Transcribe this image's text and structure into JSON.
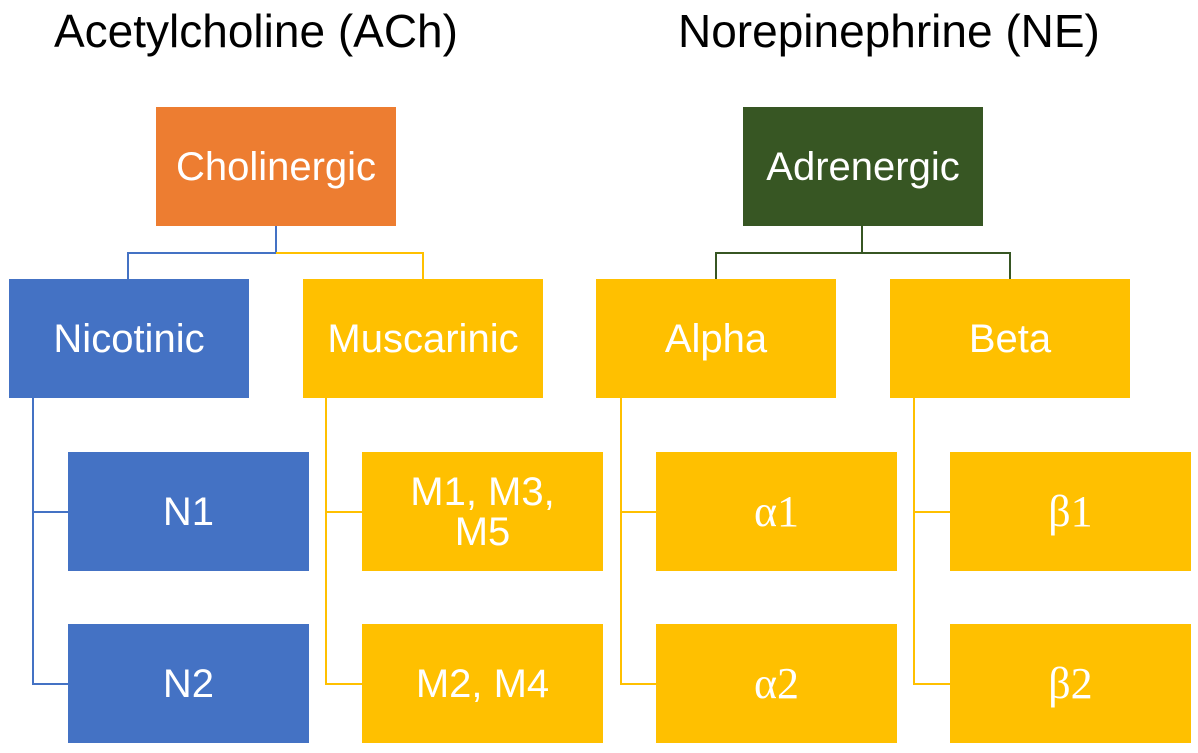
{
  "headings": {
    "left": "Acetylcholine (ACh)",
    "right": "Norepinephrine (NE)"
  },
  "trees": [
    {
      "root": "Cholinergic",
      "branches": [
        {
          "label": "Nicotinic",
          "children": [
            "N1",
            "N2"
          ]
        },
        {
          "label": "Muscarinic",
          "children": [
            "M1, M3, M5",
            "M2, M4"
          ]
        }
      ]
    },
    {
      "root": "Adrenergic",
      "branches": [
        {
          "label": "Alpha",
          "children": [
            "α1",
            "α2"
          ]
        },
        {
          "label": "Beta",
          "children": [
            "β1",
            "β2"
          ]
        }
      ]
    }
  ],
  "colors": {
    "cholinergic": "#ED7D31",
    "nicotinic": "#4472C4",
    "muscarinic": "#FFC000",
    "adrenergic": "#375623",
    "adrenergic_subtypes": "#FFC000",
    "line_blue": "#4472C4",
    "line_yellow": "#FFC000",
    "line_green": "#375623"
  }
}
